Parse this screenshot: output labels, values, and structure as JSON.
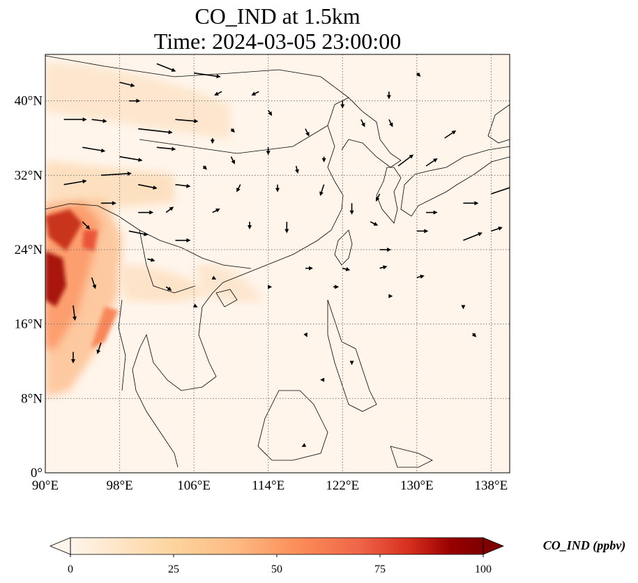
{
  "title": {
    "line1": "CO_IND at 1.5km",
    "line2": "Time: 2024-03-05 23:00:00"
  },
  "map": {
    "extent": {
      "lon": [
        90,
        140
      ],
      "lat": [
        0,
        45
      ]
    },
    "lon_ticks": [
      {
        "value": 90,
        "label": "90°E"
      },
      {
        "value": 98,
        "label": "98°E"
      },
      {
        "value": 106,
        "label": "106°E"
      },
      {
        "value": 114,
        "label": "114°E"
      },
      {
        "value": 122,
        "label": "122°E"
      },
      {
        "value": 130,
        "label": "130°E"
      },
      {
        "value": 138,
        "label": "138°E"
      }
    ],
    "lat_ticks": [
      {
        "value": 0,
        "label": "0°"
      },
      {
        "value": 8,
        "label": "8°N"
      },
      {
        "value": 16,
        "label": "16°N"
      },
      {
        "value": 24,
        "label": "24°N"
      },
      {
        "value": 32,
        "label": "32°N"
      },
      {
        "value": 40,
        "label": "40°N"
      }
    ],
    "gridlines": true,
    "wind_vectors": [
      {
        "lon": 92,
        "lat": 38,
        "u": 6,
        "v": 0
      },
      {
        "lon": 95,
        "lat": 38,
        "u": 4,
        "v": -0.5
      },
      {
        "lon": 98,
        "lat": 42,
        "u": 4,
        "v": -1
      },
      {
        "lon": 100,
        "lat": 37,
        "u": 9,
        "v": -1
      },
      {
        "lon": 104,
        "lat": 38,
        "u": 6,
        "v": -0.5
      },
      {
        "lon": 106,
        "lat": 43,
        "u": 7,
        "v": -1
      },
      {
        "lon": 94,
        "lat": 35,
        "u": 6,
        "v": -1
      },
      {
        "lon": 98,
        "lat": 34,
        "u": 6,
        "v": -1
      },
      {
        "lon": 102,
        "lat": 35,
        "u": 5,
        "v": -0.5
      },
      {
        "lon": 92,
        "lat": 31,
        "u": 6,
        "v": 1
      },
      {
        "lon": 96,
        "lat": 32,
        "u": 8,
        "v": 0.5
      },
      {
        "lon": 100,
        "lat": 31,
        "u": 5,
        "v": -1
      },
      {
        "lon": 104,
        "lat": 31,
        "u": 4,
        "v": -0.5
      },
      {
        "lon": 96,
        "lat": 29,
        "u": 4,
        "v": 0
      },
      {
        "lon": 100,
        "lat": 28,
        "u": 4,
        "v": 0
      },
      {
        "lon": 94,
        "lat": 27,
        "u": 2,
        "v": -2
      },
      {
        "lon": 99,
        "lat": 26,
        "u": 5,
        "v": -1
      },
      {
        "lon": 104,
        "lat": 25,
        "u": 4,
        "v": 0
      },
      {
        "lon": 95,
        "lat": 21,
        "u": 1,
        "v": -3
      },
      {
        "lon": 93,
        "lat": 18,
        "u": 0.5,
        "v": -4
      },
      {
        "lon": 96,
        "lat": 14,
        "u": -1,
        "v": -3
      },
      {
        "lon": 93,
        "lat": 13,
        "u": 0,
        "v": -3
      },
      {
        "lon": 103,
        "lat": 28,
        "u": 2,
        "v": 1.5
      },
      {
        "lon": 108,
        "lat": 28,
        "u": 2,
        "v": 1
      },
      {
        "lon": 107,
        "lat": 33,
        "u": 1,
        "v": -1
      },
      {
        "lon": 110,
        "lat": 37,
        "u": 1,
        "v": -1
      },
      {
        "lon": 114,
        "lat": 39,
        "u": 1,
        "v": -1.5
      },
      {
        "lon": 114,
        "lat": 35,
        "u": 0,
        "v": -2
      },
      {
        "lon": 118,
        "lat": 37,
        "u": 1,
        "v": -2
      },
      {
        "lon": 120,
        "lat": 34,
        "u": 0,
        "v": -1.5
      },
      {
        "lon": 117,
        "lat": 33,
        "u": 0.5,
        "v": -2
      },
      {
        "lon": 120,
        "lat": 31,
        "u": -1,
        "v": -3
      },
      {
        "lon": 115,
        "lat": 31,
        "u": 0,
        "v": -2
      },
      {
        "lon": 111,
        "lat": 31,
        "u": -1,
        "v": -2
      },
      {
        "lon": 112,
        "lat": 27,
        "u": 0,
        "v": -2
      },
      {
        "lon": 116,
        "lat": 27,
        "u": 0,
        "v": -3
      },
      {
        "lon": 123,
        "lat": 29,
        "u": 0,
        "v": -3
      },
      {
        "lon": 126,
        "lat": 30,
        "u": -1,
        "v": -2
      },
      {
        "lon": 122,
        "lat": 40,
        "u": 0,
        "v": -2
      },
      {
        "lon": 124,
        "lat": 38,
        "u": 1,
        "v": -2
      },
      {
        "lon": 127,
        "lat": 38,
        "u": 1,
        "v": -2
      },
      {
        "lon": 128,
        "lat": 33,
        "u": 4,
        "v": 3
      },
      {
        "lon": 131,
        "lat": 33,
        "u": 3,
        "v": 2
      },
      {
        "lon": 133,
        "lat": 36,
        "u": 3,
        "v": 2
      },
      {
        "lon": 131,
        "lat": 28,
        "u": 3,
        "v": 0
      },
      {
        "lon": 135,
        "lat": 29,
        "u": 4,
        "v": 0
      },
      {
        "lon": 138,
        "lat": 30,
        "u": 6,
        "v": 2
      },
      {
        "lon": 135,
        "lat": 25,
        "u": 5,
        "v": 2
      },
      {
        "lon": 138,
        "lat": 26,
        "u": 3,
        "v": 1
      },
      {
        "lon": 130,
        "lat": 26,
        "u": 3,
        "v": 0
      },
      {
        "lon": 126,
        "lat": 24,
        "u": 3,
        "v": 0
      },
      {
        "lon": 122,
        "lat": 22,
        "u": 2,
        "v": -0.5
      },
      {
        "lon": 126,
        "lat": 22,
        "u": 2,
        "v": 0.5
      },
      {
        "lon": 130,
        "lat": 21,
        "u": 2,
        "v": 0.5
      },
      {
        "lon": 118,
        "lat": 22,
        "u": 2,
        "v": 0
      },
      {
        "lon": 121,
        "lat": 20,
        "u": 1.5,
        "v": 0
      },
      {
        "lon": 127,
        "lat": 19,
        "u": 1,
        "v": 0
      },
      {
        "lon": 114,
        "lat": 20,
        "u": 1,
        "v": 0
      },
      {
        "lon": 108,
        "lat": 21,
        "u": 1,
        "v": -0.5
      },
      {
        "lon": 103,
        "lat": 20,
        "u": 1.5,
        "v": -1
      },
      {
        "lon": 101,
        "lat": 23,
        "u": 2,
        "v": -0.5
      },
      {
        "lon": 106,
        "lat": 18,
        "u": 1,
        "v": -0.5
      },
      {
        "lon": 118,
        "lat": 15,
        "u": 0.5,
        "v": -1
      },
      {
        "lon": 123,
        "lat": 12,
        "u": 0,
        "v": -1
      },
      {
        "lon": 120,
        "lat": 10,
        "u": -1,
        "v": 0
      },
      {
        "lon": 118,
        "lat": 3,
        "u": -1,
        "v": -0.5
      },
      {
        "lon": 136,
        "lat": 15,
        "u": 1,
        "v": -1
      },
      {
        "lon": 135,
        "lat": 18,
        "u": 0,
        "v": -1
      },
      {
        "lon": 113,
        "lat": 41,
        "u": -2,
        "v": -1
      },
      {
        "lon": 109,
        "lat": 41,
        "u": -2,
        "v": -1
      },
      {
        "lon": 102,
        "lat": 44,
        "u": 5,
        "v": -2
      },
      {
        "lon": 99,
        "lat": 40,
        "u": 3,
        "v": 0
      },
      {
        "lon": 108,
        "lat": 36,
        "u": 0,
        "v": -1.5
      },
      {
        "lon": 110,
        "lat": 34,
        "u": 1,
        "v": -2
      },
      {
        "lon": 125,
        "lat": 27,
        "u": 2,
        "v": -1
      },
      {
        "lon": 127,
        "lat": 41,
        "u": 0,
        "v": -2
      },
      {
        "lon": 130,
        "lat": 43,
        "u": 1,
        "v": -1
      }
    ]
  },
  "legend": {
    "colorbar_ticks": [
      "0",
      "25",
      "50",
      "75",
      "100"
    ],
    "colorbar_range": [
      0,
      100
    ],
    "colorbar_label": "CO_IND (ppbv)",
    "colormap": [
      "#fff5eb",
      "#fdd49e",
      "#fdbb84",
      "#fc8d59",
      "#ef6548",
      "#d7301f",
      "#990000",
      "#7f0000"
    ]
  }
}
